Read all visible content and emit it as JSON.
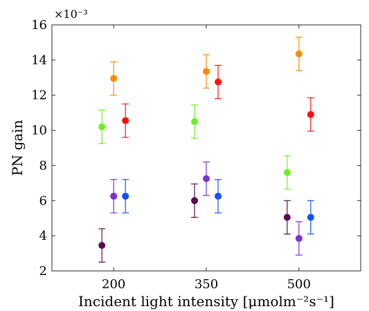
{
  "chart_data": {
    "type": "scatter",
    "title": "",
    "xlabel": "Incident light intensity [μmolm⁻²s⁻¹]",
    "ylabel": "PN gain",
    "y_exponent_label": "×10⁻³",
    "x_ticks": [
      "200",
      "350",
      "500"
    ],
    "y_ticks": [
      "2",
      "4",
      "6",
      "8",
      "10",
      "12",
      "14",
      "16"
    ],
    "xlim": [
      100,
      600
    ],
    "ylim": [
      2,
      16
    ],
    "y_scale_factor": 0.001,
    "grid": false,
    "legend": "none",
    "error_bars": true,
    "series": [
      {
        "color": "#5a0a5a",
        "points": [
          {
            "x": 200,
            "offset": -1,
            "y": 3.45,
            "err": 0.95
          },
          {
            "x": 350,
            "offset": -1,
            "y": 6.0,
            "err": 0.95
          },
          {
            "x": 500,
            "offset": -1,
            "y": 5.05,
            "err": 0.95
          }
        ]
      },
      {
        "color": "#7b2fd8",
        "points": [
          {
            "x": 200,
            "offset": 0,
            "y": 6.25,
            "err": 0.95
          },
          {
            "x": 350,
            "offset": 0,
            "y": 7.25,
            "err": 0.95
          },
          {
            "x": 500,
            "offset": 0,
            "y": 3.85,
            "err": 0.95
          }
        ]
      },
      {
        "color": "#1450ff",
        "points": [
          {
            "x": 200,
            "offset": 1,
            "y": 6.25,
            "err": 0.95
          },
          {
            "x": 350,
            "offset": 1,
            "y": 6.25,
            "err": 0.95
          },
          {
            "x": 500,
            "offset": 1,
            "y": 5.05,
            "err": 0.95
          }
        ]
      },
      {
        "color": "#6ef01e",
        "points": [
          {
            "x": 200,
            "offset": -1,
            "y": 10.2,
            "err": 0.95
          },
          {
            "x": 350,
            "offset": -1,
            "y": 10.5,
            "err": 0.95
          },
          {
            "x": 500,
            "offset": -1,
            "y": 7.6,
            "err": 0.95
          }
        ]
      },
      {
        "color": "#ff8a00",
        "points": [
          {
            "x": 200,
            "offset": 0,
            "y": 12.95,
            "err": 0.95
          },
          {
            "x": 350,
            "offset": 0,
            "y": 13.35,
            "err": 0.95
          },
          {
            "x": 500,
            "offset": 0,
            "y": 14.35,
            "err": 0.95
          }
        ]
      },
      {
        "color": "#ff1010",
        "points": [
          {
            "x": 200,
            "offset": 1,
            "y": 10.55,
            "err": 0.95
          },
          {
            "x": 350,
            "offset": 1,
            "y": 12.75,
            "err": 0.95
          },
          {
            "x": 500,
            "offset": 1,
            "y": 10.9,
            "err": 0.95
          }
        ]
      }
    ]
  }
}
